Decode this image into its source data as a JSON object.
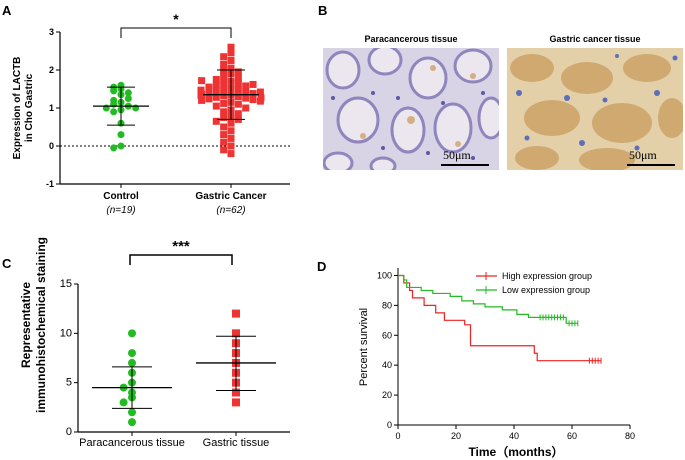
{
  "panels": {
    "A": "A",
    "B": "B",
    "C": "C",
    "D": "D"
  },
  "chart_data": [
    {
      "type": "scatter",
      "panel": "A",
      "ylabel": "Expression of LACTB in Cho Gastric",
      "ylabel_lines": [
        "Expression of LACTB",
        "in Cho Gastric"
      ],
      "ylim": [
        -1,
        3
      ],
      "yticks": [
        -1,
        0,
        1,
        2,
        3
      ],
      "categories": [
        "Control",
        "Gastric Cancer"
      ],
      "category_sublabels": [
        "(n=19)",
        "(n=62)"
      ],
      "significance": "*",
      "reference_line": 0,
      "series": [
        {
          "name": "Control",
          "color": "#22bb22",
          "marker": "circle",
          "mean": 1.05,
          "sd_low": 0.55,
          "sd_high": 1.55,
          "values": [
            1.6,
            1.55,
            1.5,
            1.45,
            1.4,
            1.35,
            1.2,
            1.15,
            1.1,
            1.05,
            1.0,
            1.0,
            0.95,
            0.9,
            0.6,
            0.3,
            0.0,
            -0.05,
            1.25
          ]
        },
        {
          "name": "Gastric Cancer",
          "color": "#ee3333",
          "marker": "square",
          "mean": 1.35,
          "sd_low": 0.7,
          "sd_high": 2.0,
          "values": [
            2.6,
            2.45,
            2.35,
            2.25,
            2.15,
            2.05,
            2.0,
            1.95,
            1.9,
            1.85,
            1.8,
            1.75,
            1.7,
            1.68,
            1.65,
            1.6,
            1.58,
            1.55,
            1.52,
            1.5,
            1.48,
            1.45,
            1.43,
            1.4,
            1.38,
            1.36,
            1.34,
            1.32,
            1.3,
            1.28,
            1.26,
            1.24,
            1.22,
            1.2,
            1.18,
            1.15,
            1.12,
            1.1,
            1.05,
            1.0,
            0.95,
            0.9,
            0.85,
            0.8,
            0.75,
            0.7,
            0.65,
            0.6,
            0.5,
            0.4,
            0.3,
            0.2,
            0.1,
            0.0,
            -0.1,
            -0.2,
            1.42,
            1.47,
            1.62,
            1.72,
            1.33,
            1.27
          ]
        }
      ]
    },
    {
      "type": "scatter",
      "panel": "C",
      "ylabel_lines": [
        "Representative",
        "immunohistochemical staining"
      ],
      "ylim": [
        0,
        15
      ],
      "yticks": [
        0,
        5,
        10,
        15
      ],
      "categories": [
        "Paracancerous tissue",
        "Gastric tissue"
      ],
      "significance": "***",
      "series": [
        {
          "name": "Paracancerous tissue",
          "color": "#22bb22",
          "marker": "circle",
          "mean": 4.5,
          "sd_low": 2.4,
          "sd_high": 6.6,
          "values": [
            10,
            8,
            7,
            6,
            5,
            4.5,
            4,
            3.5,
            3,
            2,
            1
          ]
        },
        {
          "name": "Gastric tissue",
          "color": "#ee3333",
          "marker": "square",
          "mean": 7.0,
          "sd_low": 4.2,
          "sd_high": 9.7,
          "values": [
            12,
            10,
            9,
            8,
            7,
            6,
            5,
            4,
            3
          ]
        }
      ]
    },
    {
      "type": "line",
      "panel": "D",
      "title": "",
      "xlabel": "Time（months）",
      "ylabel": "Percent survival",
      "xlim": [
        0,
        80
      ],
      "ylim": [
        0,
        105
      ],
      "xticks": [
        0,
        20,
        40,
        60,
        80
      ],
      "yticks": [
        0,
        20,
        40,
        60,
        80,
        100
      ],
      "legend_position": "top-right",
      "series": [
        {
          "name": "High expression group",
          "color": "#ee2222",
          "steps": [
            [
              0,
              100
            ],
            [
              2,
              95
            ],
            [
              4,
              90
            ],
            [
              5,
              85
            ],
            [
              9,
              80
            ],
            [
              13,
              75
            ],
            [
              16,
              70
            ],
            [
              23,
              67
            ],
            [
              25,
              53
            ],
            [
              47,
              48
            ],
            [
              48,
              43
            ],
            [
              70,
              43
            ]
          ],
          "censored": [
            66,
            67,
            68,
            69,
            70
          ]
        },
        {
          "name": "Low expression group",
          "color": "#22bb22",
          "steps": [
            [
              0,
              100
            ],
            [
              2,
              97
            ],
            [
              3,
              92
            ],
            [
              8,
              90
            ],
            [
              12,
              88
            ],
            [
              18,
              86
            ],
            [
              22,
              83
            ],
            [
              26,
              81
            ],
            [
              30,
              79
            ],
            [
              36,
              77
            ],
            [
              41,
              74
            ],
            [
              45,
              72
            ],
            [
              58,
              68
            ],
            [
              62,
              68
            ]
          ],
          "censored": [
            49,
            50,
            51,
            52,
            53,
            54,
            55,
            56,
            57,
            59,
            60,
            61,
            62
          ]
        }
      ]
    }
  ],
  "micrographs": [
    {
      "title": "Paracancerous tissue",
      "scale": "50μm"
    },
    {
      "title": "Gastric cancer tissue",
      "scale": "50μm"
    }
  ]
}
